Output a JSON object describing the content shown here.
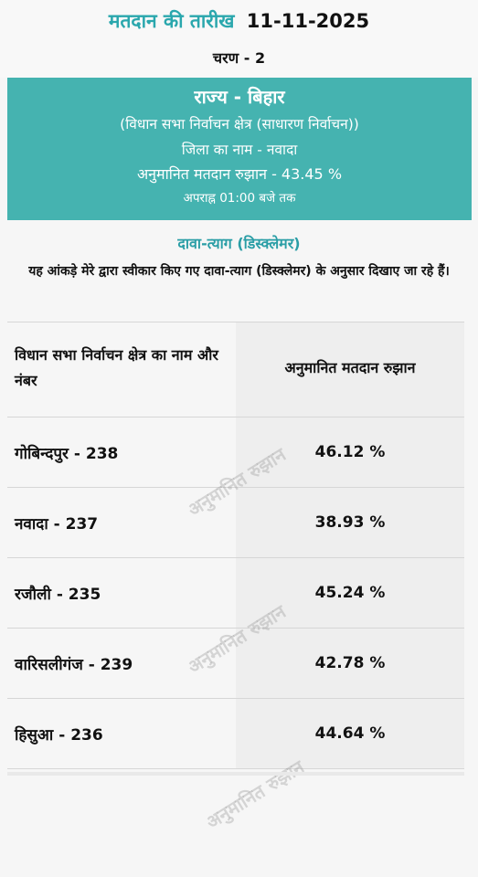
{
  "header": {
    "date_label": "मतदान की तारीख",
    "date_value": "11-11-2025",
    "phase": "चरण - 2"
  },
  "banner": {
    "state": "राज्य - बिहार",
    "constituency_type": "(विधान सभा निर्वाचन क्षेत्र (साधारण निर्वाचन))",
    "district": "जिला का नाम - नवादा",
    "estimated_turnout": "अनुमानित मतदान रुझान - 43.45 %",
    "time_note": "अपराह्न 01:00 बजे तक",
    "color": "#45b3b0"
  },
  "disclaimer": {
    "title": "दावा-त्याग (डिस्क्लेमर)",
    "text": "यह आंकड़े मेरे द्वारा स्वीकार किए गए दावा-त्याग (डिस्क्लेमर) के अनुसार दिखाए जा रहे हैं।"
  },
  "table": {
    "headers": [
      "विधान सभा निर्वाचन क्षेत्र का नाम और नंबर",
      "अनुमानित मतदान रुझान"
    ],
    "rows": [
      {
        "name": "गोबिन्दपुर - 238",
        "turnout": "46.12 %"
      },
      {
        "name": "नवादा - 237",
        "turnout": "38.93 %"
      },
      {
        "name": "रजौली - 235",
        "turnout": "45.24 %"
      },
      {
        "name": "वारिसलीगंज - 239",
        "turnout": "42.78 %"
      },
      {
        "name": "हिसुआ - 236",
        "turnout": "44.64 %"
      }
    ]
  },
  "watermark": "अनुमानित रुझान"
}
